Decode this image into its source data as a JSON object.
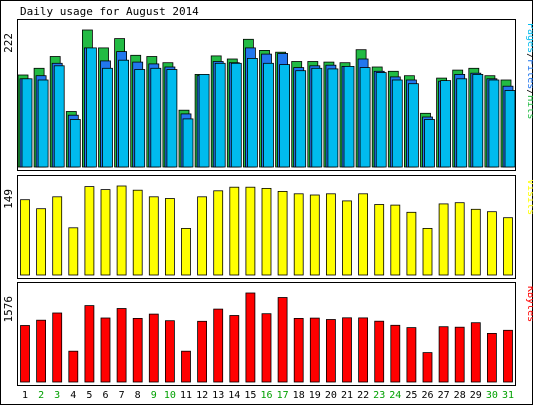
{
  "chart_data": {
    "type": "bar",
    "title": "Daily usage for August 2014",
    "categories": [
      "1",
      "2",
      "3",
      "4",
      "5",
      "6",
      "7",
      "8",
      "9",
      "10",
      "11",
      "12",
      "13",
      "14",
      "15",
      "16",
      "17",
      "18",
      "19",
      "20",
      "21",
      "22",
      "23",
      "24",
      "25",
      "26",
      "27",
      "28",
      "29",
      "30",
      "31"
    ],
    "weekend_days": [
      "2",
      "3",
      "9",
      "10",
      "16",
      "17",
      "23",
      "24",
      "30",
      "31"
    ],
    "panels": [
      {
        "name": "hits-files-pages",
        "ylabel_parts": [
          "Pages",
          "/",
          "Files",
          "/",
          "Hits"
        ],
        "ymax_label": "222",
        "ylim": [
          0,
          222
        ],
        "series": [
          {
            "name": "Hits",
            "color": "#22bb44",
            "values": [
              149,
              160,
              179,
              90,
              222,
              193,
              208,
              181,
              179,
              169,
              92,
              150,
              180,
              175,
              207,
              189,
              186,
              171,
              171,
              170,
              169,
              190,
              162,
              155,
              148,
              87,
              144,
              157,
              160,
              148,
              141
            ]
          },
          {
            "name": "Files",
            "color": "#2277ee",
            "values": [
              143,
              148,
              168,
              84,
              193,
              172,
              187,
              170,
              167,
              162,
              86,
              148,
              171,
              169,
              193,
              183,
              184,
              161,
              164,
              165,
              163,
              175,
              155,
              146,
              141,
              81,
              139,
              150,
              152,
              143,
              131
            ]
          },
          {
            "name": "Pages",
            "color": "#00bbee",
            "values": [
              143,
              141,
              164,
              77,
              193,
              160,
              173,
              158,
              160,
              158,
              78,
              150,
              168,
              168,
              176,
              168,
              166,
              156,
              160,
              159,
              163,
              161,
              153,
              141,
              135,
              77,
              140,
              143,
              150,
              141,
              124
            ]
          }
        ]
      },
      {
        "name": "visits",
        "ylabel_parts": [
          "Visits"
        ],
        "ymax_label": "149",
        "ylim": [
          0,
          149
        ],
        "series": [
          {
            "name": "Visits",
            "color": "#ffff00",
            "values": [
              126,
              111,
              131,
              79,
              148,
              143,
              149,
              142,
              131,
              128,
              78,
              131,
              141,
              147,
              147,
              145,
              140,
              136,
              134,
              136,
              124,
              136,
              118,
              117,
              105,
              78,
              119,
              121,
              110,
              106,
              96
            ]
          }
        ]
      },
      {
        "name": "kbytes",
        "ylabel_parts": [
          "KBytes"
        ],
        "ymax_label": "1576",
        "ylim": [
          0,
          1576
        ],
        "series": [
          {
            "name": "KBytes",
            "color": "#ff0000",
            "values": [
              1000,
              1095,
              1221,
              545,
              1352,
              1133,
              1302,
              1126,
              1203,
              1085,
              546,
              1074,
              1291,
              1178,
              1576,
              1210,
              1496,
              1126,
              1131,
              1107,
              1137,
              1135,
              1077,
              1004,
              964,
              520,
              979,
              971,
              1050,
              860,
              916
            ]
          }
        ]
      }
    ],
    "colors": {
      "background": "#ffffff",
      "frame": "#000000",
      "weekday_label": "#000000",
      "weekend_label": "#00a000"
    }
  }
}
